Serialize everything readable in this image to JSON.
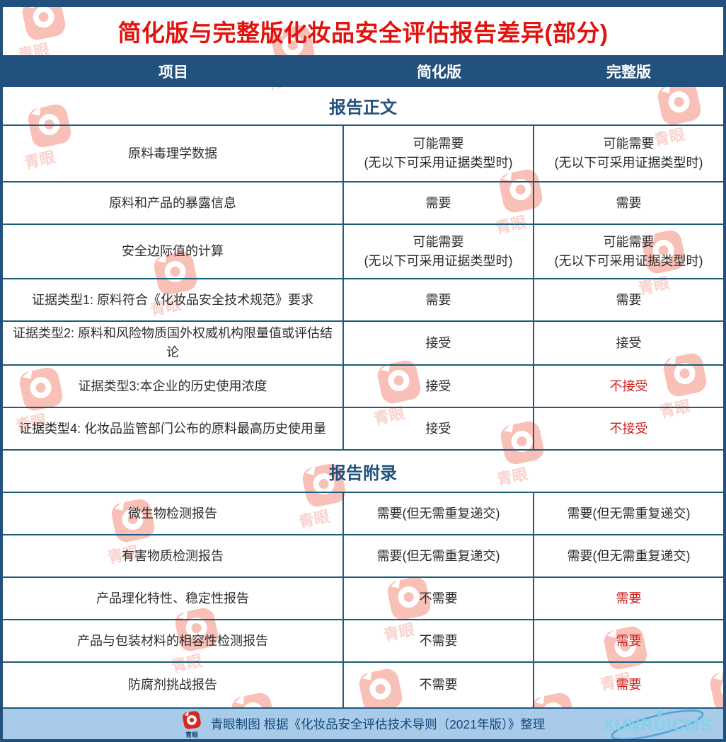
{
  "title": "简化版与完整版化妆品安全评估报告差异(部分)",
  "columns": [
    "项目",
    "简化版",
    "完整版"
  ],
  "sections": [
    {
      "heading": "报告正文",
      "rows": [
        {
          "item": "原料毒理学数据",
          "simplified": "可能需要\n(无以下可采用证据类型时)",
          "full": "可能需要\n(无以下可采用证据类型时)",
          "full_red": false
        },
        {
          "item": "原料和产品的暴露信息",
          "simplified": "需要",
          "full": "需要",
          "full_red": false
        },
        {
          "item": "安全边际值的计算",
          "simplified": "可能需要\n(无以下可采用证据类型时)",
          "full": "可能需要\n(无以下可采用证据类型时)",
          "full_red": false
        },
        {
          "item": "证据类型1: 原料符合《化妆品安全技术规范》要求",
          "simplified": "需要",
          "full": "需要",
          "full_red": false
        },
        {
          "item": "证据类型2: 原料和风险物质国外权威机构限量值或评估结论",
          "simplified": "接受",
          "full": "接受",
          "full_red": false
        },
        {
          "item": "证据类型3:本企业的历史使用浓度",
          "simplified": "接受",
          "full": "不接受",
          "full_red": true
        },
        {
          "item": "证据类型4: 化妆品监管部门公布的原料最高历史使用量",
          "simplified": "接受",
          "full": "不接受",
          "full_red": true
        }
      ]
    },
    {
      "heading": "报告附录",
      "rows": [
        {
          "item": "微生物检测报告",
          "simplified": "需要(但无需重复递交)",
          "full": "需要(但无需重复递交)",
          "full_red": false
        },
        {
          "item": "有害物质检测报告",
          "simplified": "需要(但无需重复递交)",
          "full": "需要(但无需重复递交)",
          "full_red": false
        },
        {
          "item": "产品理化特性、稳定性报告",
          "simplified": "不需要",
          "full": "需要",
          "full_red": true
        },
        {
          "item": "产品与包装材料的相容性检测报告",
          "simplified": "不需要",
          "full": "需要",
          "full_red": true
        },
        {
          "item": "防腐剂挑战报告",
          "simplified": "不需要",
          "full": "需要",
          "full_red": true
        }
      ]
    }
  ],
  "footer": {
    "logo_label": "青眼",
    "credit": "青眼制图  根据《化妆品安全评估技术导则（2021年版）》整理",
    "watermark": "XUNRUICMS"
  },
  "watermark_stamp_label": "青眼",
  "colors": {
    "navy": "#22517e",
    "title_red": "#e2120d",
    "alert_red": "#cd201c",
    "grid_line": "#1e5c7e",
    "footer_bg": "#a7cbe9",
    "stamp_red": "#ef6a55",
    "xunrui_cyan": "#82d2ec"
  },
  "chart_data": {
    "type": "table",
    "title": "简化版与完整版化妆品安全评估报告差异(部分)",
    "columns": [
      "项目",
      "简化版",
      "完整版"
    ],
    "rows": [
      [
        "报告正文",
        "",
        ""
      ],
      [
        "原料毒理学数据",
        "可能需要(无以下可采用证据类型时)",
        "可能需要(无以下可采用证据类型时)"
      ],
      [
        "原料和产品的暴露信息",
        "需要",
        "需要"
      ],
      [
        "安全边际值的计算",
        "可能需要(无以下可采用证据类型时)",
        "可能需要(无以下可采用证据类型时)"
      ],
      [
        "证据类型1: 原料符合《化妆品安全技术规范》要求",
        "需要",
        "需要"
      ],
      [
        "证据类型2: 原料和风险物质国外权威机构限量值或评估结论",
        "接受",
        "接受"
      ],
      [
        "证据类型3:本企业的历史使用浓度",
        "接受",
        "不接受"
      ],
      [
        "证据类型4: 化妆品监管部门公布的原料最高历史使用量",
        "接受",
        "不接受"
      ],
      [
        "报告附录",
        "",
        ""
      ],
      [
        "微生物检测报告",
        "需要(但无需重复递交)",
        "需要(但无需重复递交)"
      ],
      [
        "有害物质检测报告",
        "需要(但无需重复递交)",
        "需要(但无需重复递交)"
      ],
      [
        "产品理化特性、稳定性报告",
        "不需要",
        "需要"
      ],
      [
        "产品与包装材料的相容性检测报告",
        "不需要",
        "需要"
      ],
      [
        "防腐剂挑战报告",
        "不需要",
        "需要"
      ]
    ],
    "red_value_cells": [
      [
        "证据类型3:本企业的历史使用浓度",
        "完整版"
      ],
      [
        "证据类型4: 化妆品监管部门公布的原料最高历史使用量",
        "完整版"
      ],
      [
        "产品理化特性、稳定性报告",
        "完整版"
      ],
      [
        "产品与包装材料的相容性检测报告",
        "完整版"
      ],
      [
        "防腐剂挑战报告",
        "完整版"
      ]
    ]
  }
}
